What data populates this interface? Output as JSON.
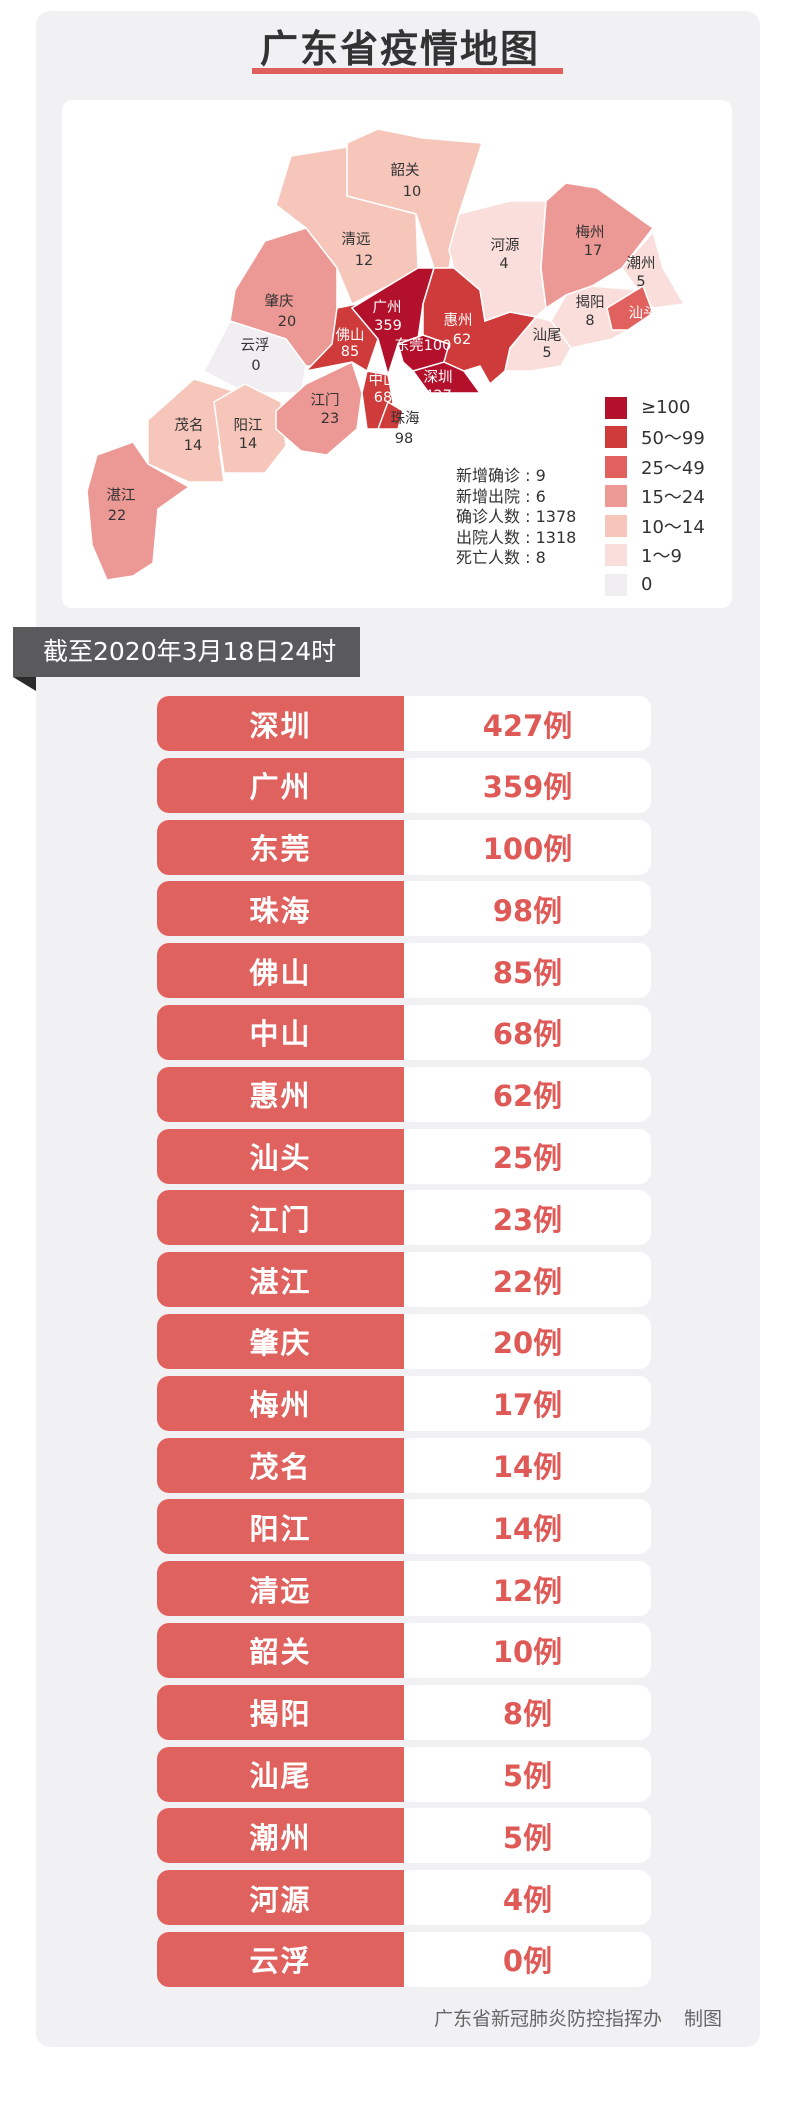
{
  "title": "广东省疫情地图",
  "colors": {
    "ge100": "#b3102b",
    "r50_99": "#cf3a3a",
    "r25_49": "#e0615d",
    "r15_24": "#ec9894",
    "r10_14": "#f6c6bb",
    "r1_9": "#f9dedb",
    "r0": "#f0eef1",
    "accent": "#e0625f"
  },
  "map": {
    "regions": [
      {
        "name": "韶关",
        "value": "10"
      },
      {
        "name": "清远",
        "value": "12"
      },
      {
        "name": "肇庆",
        "value": "20"
      },
      {
        "name": "云浮",
        "value": "0"
      },
      {
        "name": "茂名",
        "value": "14"
      },
      {
        "name": "阳江",
        "value": "14"
      },
      {
        "name": "湛江",
        "value": "22"
      },
      {
        "name": "江门",
        "value": "23"
      },
      {
        "name": "佛山",
        "value": "85"
      },
      {
        "name": "广州",
        "value": "359"
      },
      {
        "name": "中山",
        "value": "68"
      },
      {
        "name": "珠海",
        "value": "98"
      },
      {
        "name": "东莞",
        "value": "100"
      },
      {
        "name": "深圳",
        "value": "427"
      },
      {
        "name": "惠州",
        "value": "62"
      },
      {
        "name": "河源",
        "value": "4"
      },
      {
        "name": "梅州",
        "value": "17"
      },
      {
        "name": "潮州",
        "value": "5"
      },
      {
        "name": "揭阳",
        "value": "8"
      },
      {
        "name": "汕头",
        "value": "25"
      },
      {
        "name": "汕尾",
        "value": "5"
      }
    ],
    "legend": [
      "≥100",
      "50～99",
      "25～49",
      "15～24",
      "10～14",
      "1～9",
      "0"
    ],
    "stats": [
      {
        "label": "新增确诊",
        "value": "9"
      },
      {
        "label": "新增出院",
        "value": "6"
      },
      {
        "label": "确诊人数",
        "value": "1378"
      },
      {
        "label": "出院人数",
        "value": "1318"
      },
      {
        "label": "死亡人数",
        "value": "8"
      }
    ]
  },
  "date_banner": "截至2020年3月18日24时",
  "table": [
    {
      "city": "深圳",
      "count": "427例"
    },
    {
      "city": "广州",
      "count": "359例"
    },
    {
      "city": "东莞",
      "count": "100例"
    },
    {
      "city": "珠海",
      "count": "98例"
    },
    {
      "city": "佛山",
      "count": "85例"
    },
    {
      "city": "中山",
      "count": "68例"
    },
    {
      "city": "惠州",
      "count": "62例"
    },
    {
      "city": "汕头",
      "count": "25例"
    },
    {
      "city": "江门",
      "count": "23例"
    },
    {
      "city": "湛江",
      "count": "22例"
    },
    {
      "city": "肇庆",
      "count": "20例"
    },
    {
      "city": "梅州",
      "count": "17例"
    },
    {
      "city": "茂名",
      "count": "14例"
    },
    {
      "city": "阳江",
      "count": "14例"
    },
    {
      "city": "清远",
      "count": "12例"
    },
    {
      "city": "韶关",
      "count": "10例"
    },
    {
      "city": "揭阳",
      "count": "8例"
    },
    {
      "city": "汕尾",
      "count": "5例"
    },
    {
      "city": "潮州",
      "count": "5例"
    },
    {
      "city": "河源",
      "count": "4例"
    },
    {
      "city": "云浮",
      "count": "0例"
    }
  ],
  "footer": {
    "source": "广东省新冠肺炎防控指挥办",
    "suffix": "制图"
  }
}
